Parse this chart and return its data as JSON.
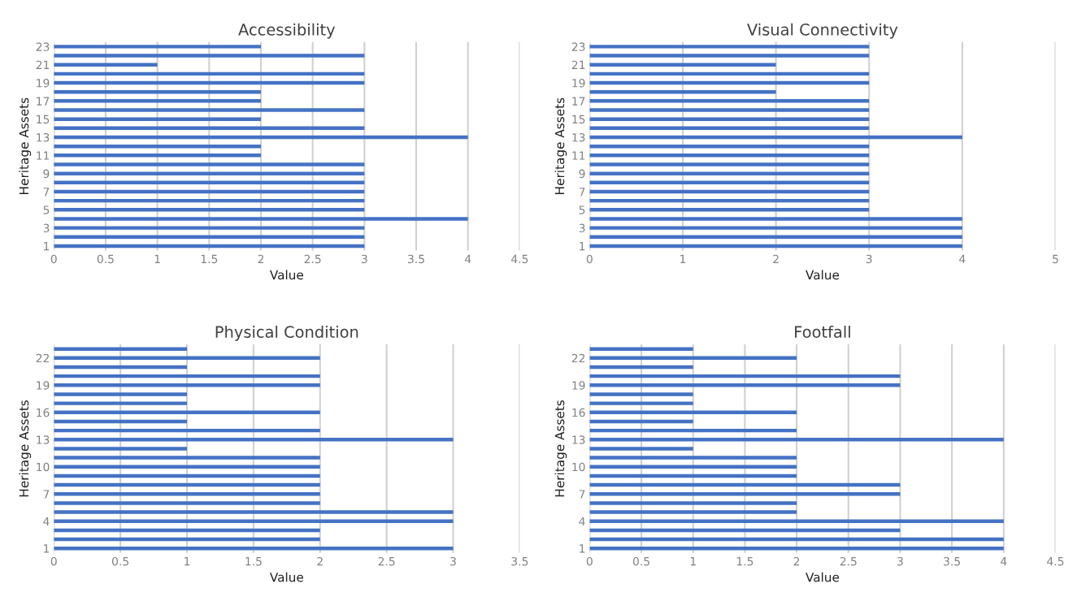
{
  "chart_data": [
    {
      "type": "bar",
      "orientation": "horizontal",
      "title": "Accessibility",
      "xlabel": "Value",
      "ylabel": "Heritage Assets",
      "grid": "x",
      "color": "#4472c4",
      "xlim": [
        0,
        4.5
      ],
      "xticks": [
        0,
        0.5,
        1,
        1.5,
        2,
        2.5,
        3,
        3.5,
        4,
        4.5
      ],
      "categories": [
        "23",
        null,
        "21",
        null,
        "19",
        null,
        "17",
        null,
        "15",
        null,
        "13",
        null,
        "11",
        null,
        "9",
        null,
        "7",
        null,
        "5",
        null,
        "3",
        null,
        "1"
      ],
      "values": [
        2,
        3,
        1,
        3,
        3,
        2,
        2,
        3,
        2,
        3,
        4,
        2,
        2,
        3,
        3,
        3,
        3,
        3,
        3,
        4,
        3,
        3,
        3
      ]
    },
    {
      "type": "bar",
      "orientation": "horizontal",
      "title": "Visual Connectivity",
      "xlabel": "Value",
      "ylabel": "Heritage Assets",
      "grid": "x",
      "color": "#4472c4",
      "xlim": [
        0,
        5
      ],
      "xticks": [
        0,
        1,
        2,
        3,
        4,
        5
      ],
      "categories": [
        "23",
        null,
        "21",
        null,
        "19",
        null,
        "17",
        null,
        "15",
        null,
        "13",
        null,
        "11",
        null,
        "9",
        null,
        "7",
        null,
        "5",
        null,
        "3",
        null,
        "1"
      ],
      "values": [
        3,
        3,
        2,
        3,
        3,
        2,
        3,
        3,
        3,
        3,
        4,
        3,
        3,
        3,
        3,
        3,
        3,
        3,
        3,
        4,
        4,
        4,
        4
      ]
    },
    {
      "type": "bar",
      "orientation": "horizontal",
      "title": "Physical Condition",
      "xlabel": "Value",
      "ylabel": "Heritage Assets",
      "grid": "x",
      "color": "#4472c4",
      "xlim": [
        0,
        3.5
      ],
      "xticks": [
        0,
        0.5,
        1,
        1.5,
        2,
        2.5,
        3,
        3.5
      ],
      "categories": [
        null,
        "22",
        null,
        null,
        "19",
        null,
        null,
        "16",
        null,
        null,
        "13",
        null,
        null,
        "10",
        null,
        null,
        "7",
        null,
        null,
        "4",
        null,
        null,
        "1"
      ],
      "values": [
        1,
        2,
        1,
        2,
        2,
        1,
        1,
        2,
        1,
        2,
        3,
        1,
        2,
        2,
        2,
        2,
        2,
        2,
        3,
        3,
        2,
        2,
        3
      ]
    },
    {
      "type": "bar",
      "orientation": "horizontal",
      "title": "Footfall",
      "xlabel": "Value",
      "ylabel": "Heritage Assets",
      "grid": "x",
      "color": "#4472c4",
      "xlim": [
        0,
        4.5
      ],
      "xticks": [
        0,
        0.5,
        1,
        1.5,
        2,
        2.5,
        3,
        3.5,
        4,
        4.5
      ],
      "categories": [
        null,
        "22",
        null,
        null,
        "19",
        null,
        null,
        "16",
        null,
        null,
        "13",
        null,
        null,
        "10",
        null,
        null,
        "7",
        null,
        null,
        "4",
        null,
        null,
        "1"
      ],
      "values": [
        1,
        2,
        1,
        3,
        3,
        1,
        1,
        2,
        1,
        2,
        4,
        1,
        2,
        2,
        2,
        3,
        3,
        2,
        2,
        4,
        3,
        4,
        4
      ]
    }
  ]
}
